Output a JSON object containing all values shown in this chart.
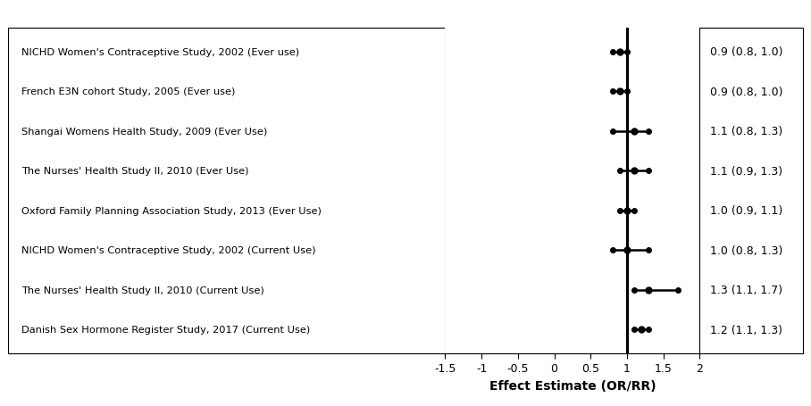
{
  "studies": [
    "NICHD Women's Contraceptive Study, 2002 (Ever use)",
    "French E3N cohort Study, 2005 (Ever use)",
    "Shangai Womens Health Study, 2009 (Ever Use)",
    "The Nurses' Health Study II, 2010 (Ever Use)",
    "Oxford Family Planning Association Study, 2013 (Ever Use)",
    "NICHD Women's Contraceptive Study, 2002 (Current Use)",
    "The Nurses' Health Study II, 2010 (Current Use)",
    "Danish Sex Hormone Register Study, 2017 (Current Use)"
  ],
  "estimates": [
    0.9,
    0.9,
    1.1,
    1.1,
    1.0,
    1.0,
    1.3,
    1.2
  ],
  "ci_lower": [
    0.8,
    0.8,
    0.8,
    0.9,
    0.9,
    0.8,
    1.1,
    1.1
  ],
  "ci_upper": [
    1.0,
    1.0,
    1.3,
    1.3,
    1.1,
    1.3,
    1.7,
    1.3
  ],
  "labels": [
    "0.9 (0.8, 1.0)",
    "0.9 (0.8, 1.0)",
    "1.1 (0.8, 1.3)",
    "1.1 (0.9, 1.3)",
    "1.0 (0.9, 1.1)",
    "1.0 (0.8, 1.3)",
    "1.3 (1.1, 1.7)",
    "1.2 (1.1, 1.3)"
  ],
  "xlim": [
    -1.5,
    2.0
  ],
  "xticks": [
    -1.5,
    -1.0,
    -0.5,
    0.0,
    0.5,
    1.0,
    1.5,
    2.0
  ],
  "xtick_labels": [
    "-1.5",
    "-1",
    "-0.5",
    "0",
    "0.5",
    "1",
    "1.5",
    "2"
  ],
  "vline_x": 1.0,
  "xlabel": "Effect Estimate (OR/RR)",
  "marker_color": "black",
  "line_color": "black",
  "background_color": "#ffffff",
  "fontsize_study": 8.2,
  "fontsize_label": 9.0,
  "fontsize_axis": 9,
  "marker_size": 5,
  "linewidth": 1.8,
  "dot_size": 4
}
